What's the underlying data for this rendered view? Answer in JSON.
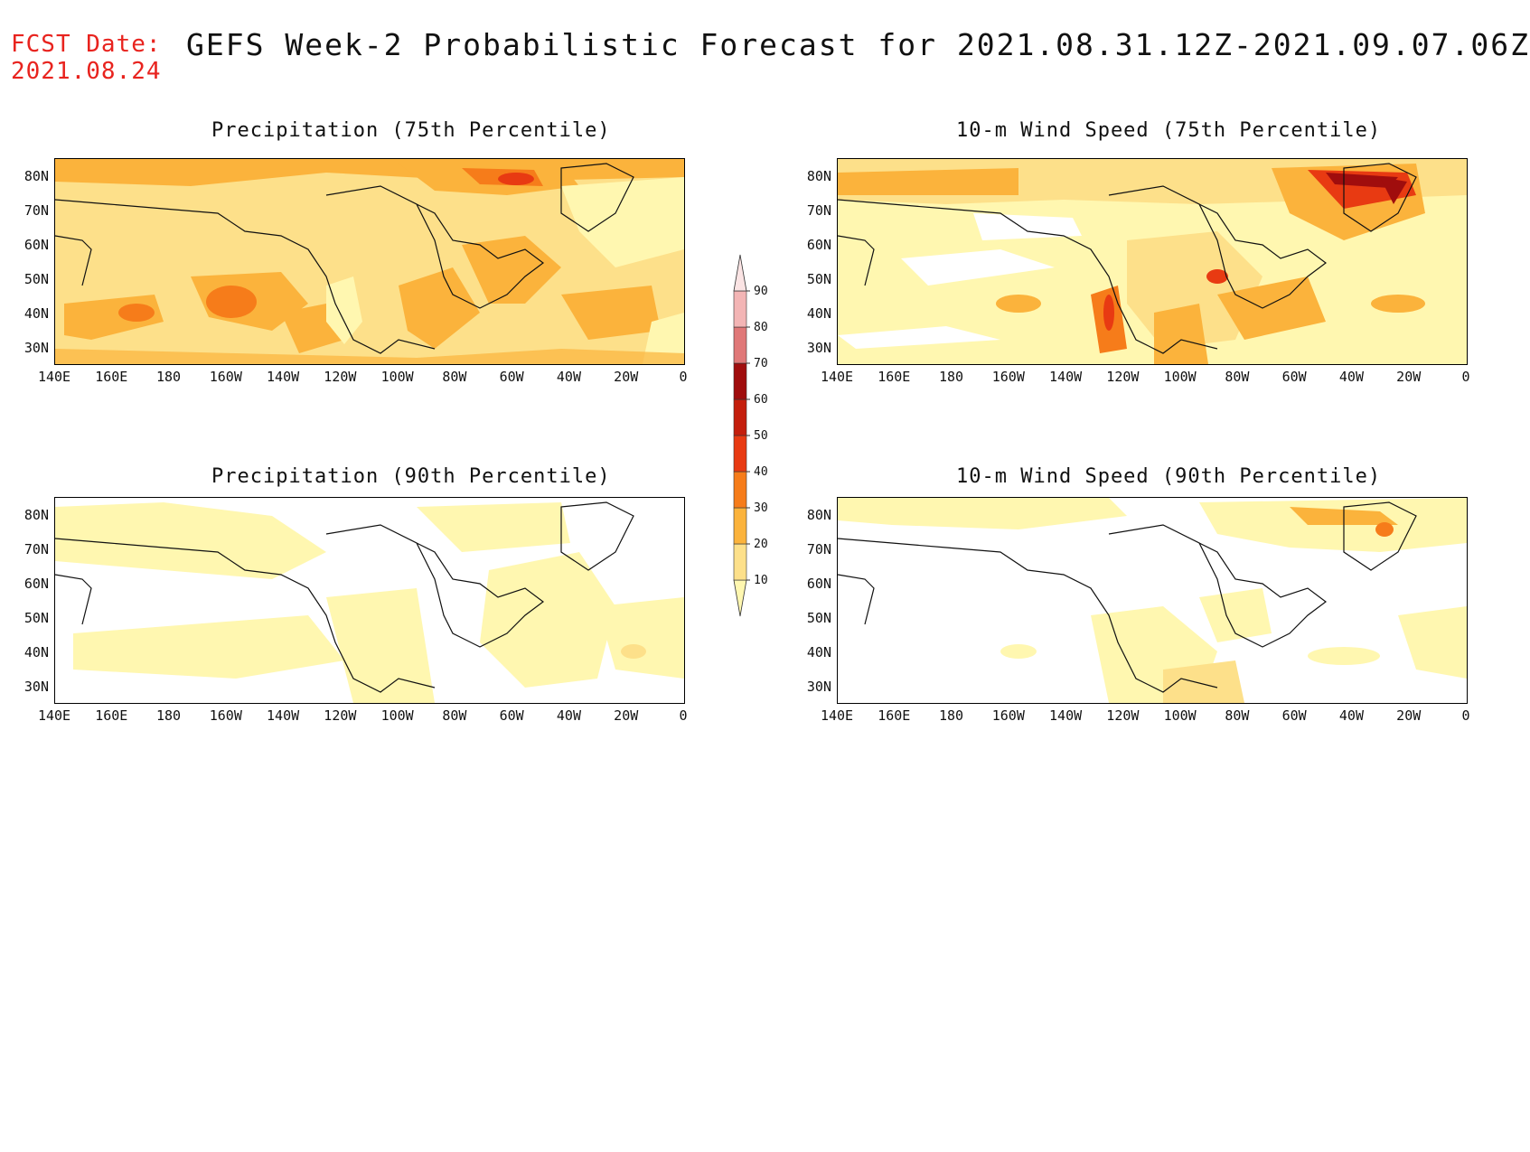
{
  "header": {
    "fcst_label": "FCST Date:",
    "fcst_date": "2021.08.24",
    "title": "GEFS Week-2 Probabilistic Forecast for 2021.08.31.12Z-2021.09.07.06Z"
  },
  "panels": [
    {
      "id": "precip75",
      "title": "Precipitation (75th Percentile)"
    },
    {
      "id": "wind75",
      "title": "10-m Wind Speed (75th Percentile)"
    },
    {
      "id": "precip90",
      "title": "Precipitation (90th Percentile)"
    },
    {
      "id": "wind90",
      "title": "10-m Wind Speed (90th Percentile)"
    }
  ],
  "axes": {
    "lat_labels": [
      "80N",
      "70N",
      "60N",
      "50N",
      "40N",
      "30N"
    ],
    "lon_labels": [
      "140E",
      "160E",
      "180",
      "160W",
      "140W",
      "120W",
      "100W",
      "80W",
      "60W",
      "40W",
      "20W",
      "0"
    ]
  },
  "colorbar": {
    "levels": [
      "10",
      "20",
      "30",
      "40",
      "50",
      "60",
      "70",
      "80",
      "90"
    ],
    "colors": [
      "#fff7b0",
      "#fde08a",
      "#fbb33c",
      "#f67c1a",
      "#e83a12",
      "#c41e0c",
      "#a00d0d",
      "#e07878",
      "#f3b5b5",
      "#fbe4e4"
    ]
  },
  "colors": {
    "fcst_date": "#e8231e",
    "title": "#111111",
    "coastline": "#111111"
  }
}
